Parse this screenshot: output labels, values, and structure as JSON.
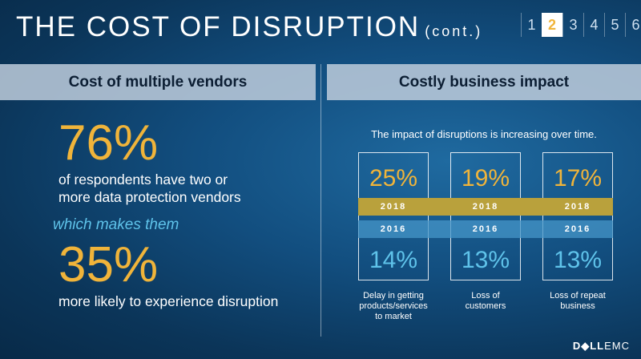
{
  "title": {
    "main": "THE COST OF DISRUPTION",
    "cont": "(cont.)"
  },
  "pager": {
    "pages": [
      "1",
      "2",
      "3",
      "4",
      "5",
      "6"
    ],
    "active": "2"
  },
  "left": {
    "header": "Cost of multiple vendors",
    "stat1": "76%",
    "desc1_line1": "of respondents have two or",
    "desc1_line2": "more data protection vendors",
    "connector": "which makes them",
    "stat2": "35%",
    "desc2": "more likely to experience disruption"
  },
  "right": {
    "header": "Costly business impact",
    "subtitle": "The impact of disruptions is increasing over time.",
    "year_top": "2018",
    "year_bottom": "2016",
    "items": [
      {
        "v2018": "25%",
        "v2016": "14%",
        "caption": [
          "Delay in getting",
          "products/services",
          "to market"
        ]
      },
      {
        "v2018": "19%",
        "v2016": "13%",
        "caption": [
          "Loss of",
          "customers"
        ]
      },
      {
        "v2018": "17%",
        "v2016": "13%",
        "caption": [
          "Loss of repeat",
          "business"
        ]
      }
    ]
  },
  "logo": {
    "brand": "D◆LL",
    "sub": "EMC"
  },
  "colors": {
    "accent_gold": "#f0b43a",
    "accent_blue": "#5fc3ea",
    "band_2018": "#b9a13c"
  }
}
